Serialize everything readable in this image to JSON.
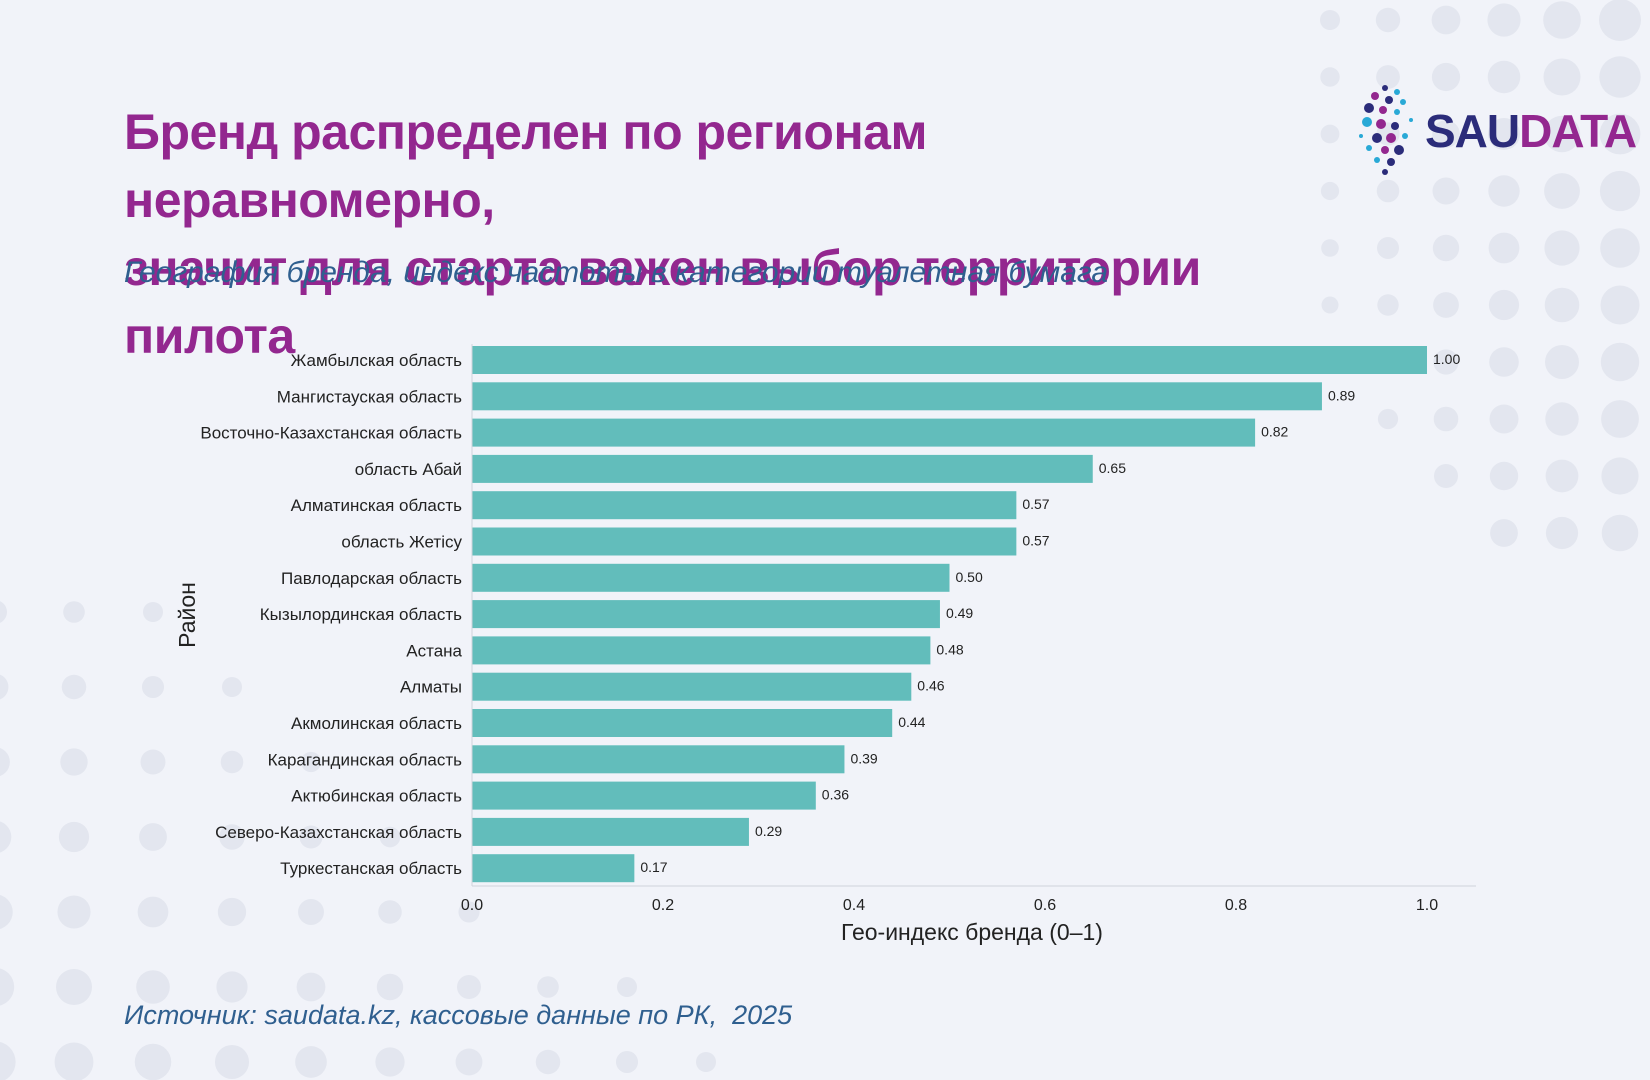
{
  "header": {
    "title_line1": "Бренд распределен по регионам неравномерно,",
    "title_line2": "значит для старта важен выбор территории пилота",
    "subtitle": "География бренда, индекс частоты в категории туалетная бумага"
  },
  "logo": {
    "text_prefix": "SAU",
    "text_suffix": "DATA"
  },
  "footer": {
    "source": "Источник: saudata.kz, кассовые данные по РК,  2025"
  },
  "colors": {
    "title": "#93278f",
    "subtitle": "#2f5f8f",
    "bar": "#62bdbb",
    "logo_primary": "#2b2c7a",
    "logo_accent": "#93278f"
  },
  "chart_data": {
    "type": "bar",
    "orientation": "horizontal",
    "xlabel": "Гео-индекс бренда (0–1)",
    "ylabel": "Район",
    "xlim": [
      0,
      1.05
    ],
    "xticks": [
      "0.0",
      "0.2",
      "0.4",
      "0.6",
      "0.8",
      "1.0"
    ],
    "grid": false,
    "categories": [
      "Жамбылская область",
      "Мангистауская область",
      "Восточно-Казахстанская область",
      "область Абай",
      "Алматинская область",
      "область Жетісу",
      "Павлодарская область",
      "Кызылординская область",
      "Астана",
      "Алматы",
      "Акмолинская область",
      "Карагандинская область",
      "Актюбинская область",
      "Северо-Казахстанская область",
      "Туркестанская область"
    ],
    "values": [
      1.0,
      0.89,
      0.82,
      0.65,
      0.57,
      0.57,
      0.5,
      0.49,
      0.48,
      0.46,
      0.44,
      0.39,
      0.36,
      0.29,
      0.17
    ],
    "value_labels": [
      "1.00",
      "0.89",
      "0.82",
      "0.65",
      "0.57",
      "0.57",
      "0.50",
      "0.49",
      "0.48",
      "0.46",
      "0.44",
      "0.39",
      "0.36",
      "0.29",
      "0.17"
    ]
  }
}
